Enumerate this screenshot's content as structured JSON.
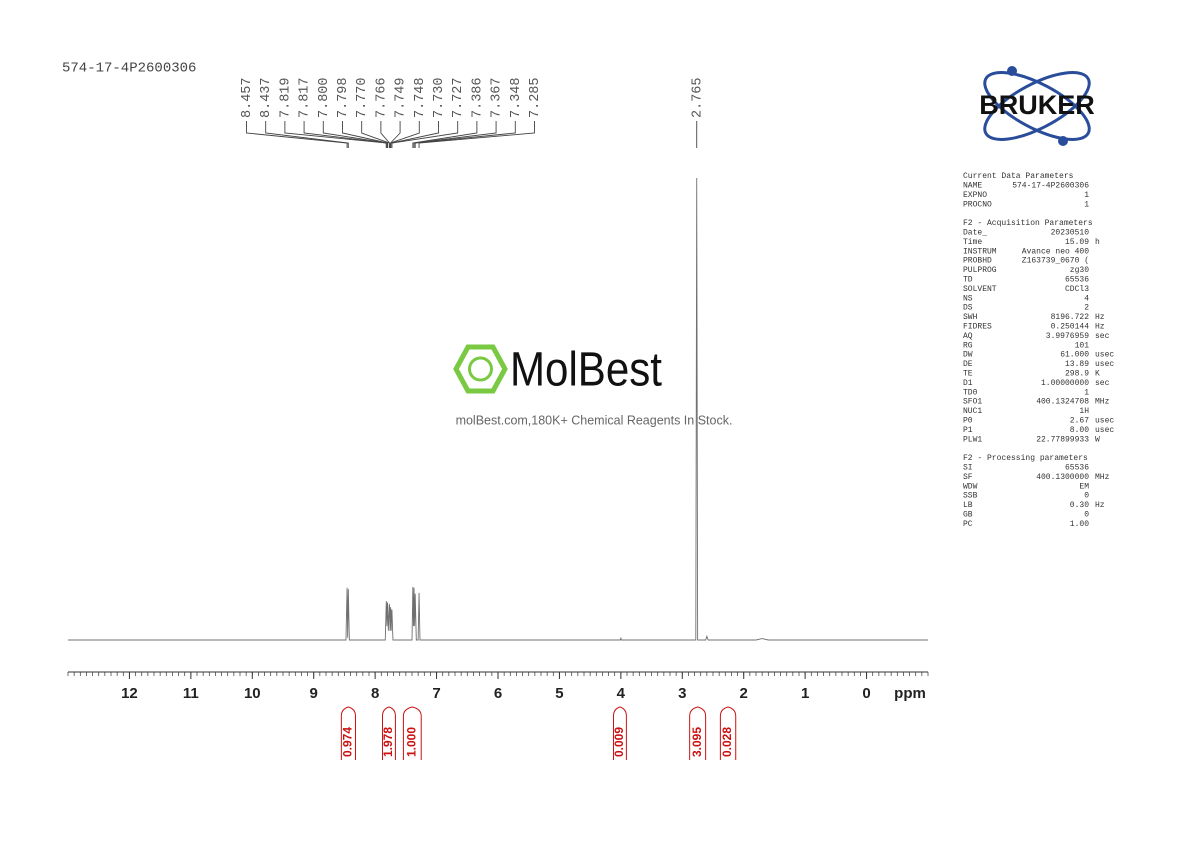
{
  "sample_id": "574-17-4P2600306",
  "logo": "BRUKER",
  "watermark": {
    "brand": "MolBest",
    "tagline": "molBest.com,180K+ Chemical Reagents In Stock."
  },
  "parameters": [
    {
      "title": "Current Data Parameters",
      "rows": [
        [
          "NAME",
          "574-17-4P2600306"
        ],
        [
          "EXPNO",
          "1"
        ],
        [
          "PROCNO",
          "1"
        ]
      ]
    },
    {
      "title": "F2 - Acquisition Parameters",
      "rows": [
        [
          "Date_",
          "20230510"
        ],
        [
          "Time",
          "15.09",
          "h"
        ],
        [
          "INSTRUM",
          "Avance neo 400"
        ],
        [
          "PROBHD",
          "Z163739_0670 ("
        ],
        [
          "PULPROG",
          "zg30"
        ],
        [
          "TD",
          "65536"
        ],
        [
          "SOLVENT",
          "CDCl3"
        ],
        [
          "NS",
          "4"
        ],
        [
          "DS",
          "2"
        ],
        [
          "SWH",
          "8196.722",
          "Hz"
        ],
        [
          "FIDRES",
          "0.250144",
          "Hz"
        ],
        [
          "AQ",
          "3.9976959",
          "sec"
        ],
        [
          "RG",
          "101"
        ],
        [
          "DW",
          "61.000",
          "usec"
        ],
        [
          "DE",
          "13.89",
          "usec"
        ],
        [
          "TE",
          "298.9",
          "K"
        ],
        [
          "D1",
          "1.00000000",
          "sec"
        ],
        [
          "TD0",
          "1"
        ],
        [
          "SFO1",
          "400.1324708",
          "MHz"
        ],
        [
          "NUC1",
          "1H"
        ],
        [
          "P0",
          "2.67",
          "usec"
        ],
        [
          "P1",
          "8.00",
          "usec"
        ],
        [
          "PLW1",
          "22.77899933",
          "W"
        ]
      ]
    },
    {
      "title": "F2 - Processing parameters",
      "rows": [
        [
          "SI",
          "65536"
        ],
        [
          "SF",
          "400.1300000",
          "MHz"
        ],
        [
          "WDW",
          "EM"
        ],
        [
          "SSB",
          "0"
        ],
        [
          "LB",
          "0.30",
          "Hz"
        ],
        [
          "GB",
          "0"
        ],
        [
          "PC",
          "1.00"
        ]
      ]
    }
  ],
  "chart_data": {
    "type": "nmr",
    "x_label": "ppm",
    "xlim": [
      13,
      -1
    ],
    "xticks": [
      12,
      11,
      10,
      9,
      8,
      7,
      6,
      5,
      4,
      3,
      2,
      1,
      0
    ],
    "ylim": [
      0,
      100
    ],
    "color": "#707070",
    "spectrum": {
      "x": [
        13,
        8.475,
        8.457,
        8.447,
        8.437,
        8.42,
        7.835,
        7.819,
        7.817,
        7.808,
        7.8,
        7.798,
        7.785,
        7.77,
        7.766,
        7.757,
        7.749,
        7.748,
        7.739,
        7.73,
        7.727,
        7.71,
        7.4,
        7.386,
        7.376,
        7.367,
        7.357,
        7.348,
        7.33,
        7.3,
        7.285,
        7.27,
        4.01,
        4.0,
        3.99,
        2.78,
        2.765,
        2.75,
        2.62,
        2.6,
        2.58,
        1.8,
        1.7,
        1.6,
        -1
      ],
      "values": [
        0,
        0,
        11.3,
        0.5,
        11,
        0,
        0,
        8.2,
        8.4,
        3,
        8,
        8.1,
        2,
        7.5,
        7.6,
        2,
        7,
        7.1,
        2,
        6.5,
        6.6,
        0,
        0,
        11.5,
        3,
        11.3,
        3,
        10,
        0,
        0,
        10.2,
        0,
        0,
        0.4,
        0,
        0,
        100,
        0,
        0,
        0.8,
        0,
        0,
        0.3,
        0,
        0
      ]
    },
    "peak_labels": [
      8.457,
      8.437,
      7.819,
      7.817,
      {
        "value": 7.8,
        "label": "7.800"
      },
      7.798,
      {
        "value": 7.77,
        "label": "7.770"
      },
      7.766,
      7.749,
      7.748,
      {
        "value": 7.73,
        "label": "7.730"
      },
      7.727,
      7.386,
      7.367,
      7.348,
      7.285,
      2.765
    ],
    "integrals": {
      "regions": [
        [
          8.55,
          8.32
        ],
        [
          7.88,
          7.67
        ],
        [
          7.54,
          7.25
        ],
        [
          4.12,
          3.91
        ],
        [
          2.88,
          2.62
        ],
        [
          2.38,
          2.13
        ]
      ],
      "values": [
        0.974,
        1.978,
        1,
        0.009,
        3.095,
        0.028
      ],
      "value_labels": [
        "0.974",
        "1.978",
        "1.000",
        "0.009",
        "3.095",
        "0.028"
      ],
      "color": "#cc1111"
    }
  }
}
